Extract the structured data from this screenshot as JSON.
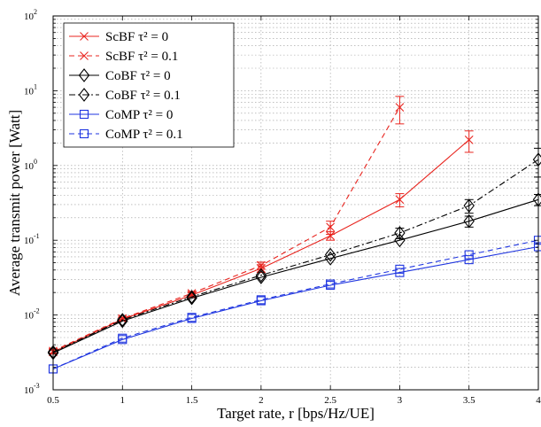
{
  "chart_data": {
    "type": "line",
    "xlabel": "Target rate, r [bps/Hz/UE]",
    "ylabel": "Average transmit power [Watt]",
    "xlim": [
      0.5,
      4
    ],
    "ylim": [
      0.001,
      100
    ],
    "yscale": "log",
    "grid": true,
    "legend_position": "top-left",
    "x_ticks": [
      "0.5",
      "1",
      "1.5",
      "2",
      "2.5",
      "3",
      "3.5",
      "4"
    ],
    "y_ticks": [
      {
        "base": "10",
        "exp": "-3",
        "value": 0.001
      },
      {
        "base": "10",
        "exp": "-2",
        "value": 0.01
      },
      {
        "base": "10",
        "exp": "-1",
        "value": 0.1
      },
      {
        "base": "10",
        "exp": "0",
        "value": 1
      },
      {
        "base": "10",
        "exp": "1",
        "value": 10
      },
      {
        "base": "10",
        "exp": "2",
        "value": 100
      }
    ],
    "series": [
      {
        "name": "ScBF τ² = 0",
        "color": "#e8251f",
        "dash": "solid",
        "marker": "x",
        "x": [
          0.5,
          1,
          1.5,
          2,
          2.5,
          3,
          3.5
        ],
        "y": [
          0.0032,
          0.0088,
          0.0185,
          0.042,
          0.115,
          0.35,
          2.2
        ],
        "err": [
          [
            0.5,
            0.0002
          ],
          [
            1,
            0.0004
          ],
          [
            1.5,
            0.0012
          ],
          [
            2,
            0.005
          ],
          [
            2.5,
            0.015
          ],
          [
            3,
            0.07
          ],
          [
            3.5,
            0.7
          ]
        ]
      },
      {
        "name": "ScBF τ² = 0.1",
        "color": "#e8251f",
        "dash": "dashed",
        "marker": "x",
        "x": [
          0.5,
          1,
          1.5,
          2,
          2.5,
          3
        ],
        "y": [
          0.0033,
          0.009,
          0.0195,
          0.046,
          0.15,
          6.0
        ],
        "err": [
          [
            0.5,
            0.0002
          ],
          [
            1,
            0.0004
          ],
          [
            1.5,
            0.0012
          ],
          [
            2,
            0.005
          ],
          [
            2.5,
            0.03
          ],
          [
            3,
            2.4
          ]
        ]
      },
      {
        "name": "CoBF τ² = 0",
        "color": "#000000",
        "dash": "solid",
        "marker": "diamond",
        "x": [
          0.5,
          1,
          1.5,
          2,
          2.5,
          3,
          3.5,
          4
        ],
        "y": [
          0.0031,
          0.0083,
          0.0168,
          0.032,
          0.057,
          0.1,
          0.18,
          0.35
        ],
        "err": [
          [
            3.5,
            0.03
          ],
          [
            4,
            0.06
          ]
        ]
      },
      {
        "name": "CoBF τ² = 0.1",
        "color": "#000000",
        "dash": "dashdot",
        "marker": "diamond",
        "x": [
          0.5,
          1,
          1.5,
          2,
          2.5,
          3,
          3.5,
          4
        ],
        "y": [
          0.0032,
          0.0086,
          0.0175,
          0.034,
          0.064,
          0.125,
          0.29,
          1.2
        ],
        "err": [
          [
            3,
            0.02
          ],
          [
            3.5,
            0.06
          ],
          [
            4,
            0.5
          ]
        ]
      },
      {
        "name": "CoMP τ² = 0",
        "color": "#1f35e0",
        "dash": "solid",
        "marker": "square",
        "x": [
          0.5,
          1,
          1.5,
          2,
          2.5,
          3,
          3.5,
          4
        ],
        "y": [
          0.0019,
          0.0047,
          0.009,
          0.0155,
          0.025,
          0.037,
          0.055,
          0.082
        ],
        "err": []
      },
      {
        "name": "CoMP τ² = 0.1",
        "color": "#1f35e0",
        "dash": "dashed",
        "marker": "square",
        "x": [
          0.5,
          1,
          1.5,
          2,
          2.5,
          3,
          3.5,
          4
        ],
        "y": [
          0.0019,
          0.0049,
          0.0093,
          0.016,
          0.026,
          0.041,
          0.064,
          0.1
        ],
        "err": []
      }
    ]
  }
}
